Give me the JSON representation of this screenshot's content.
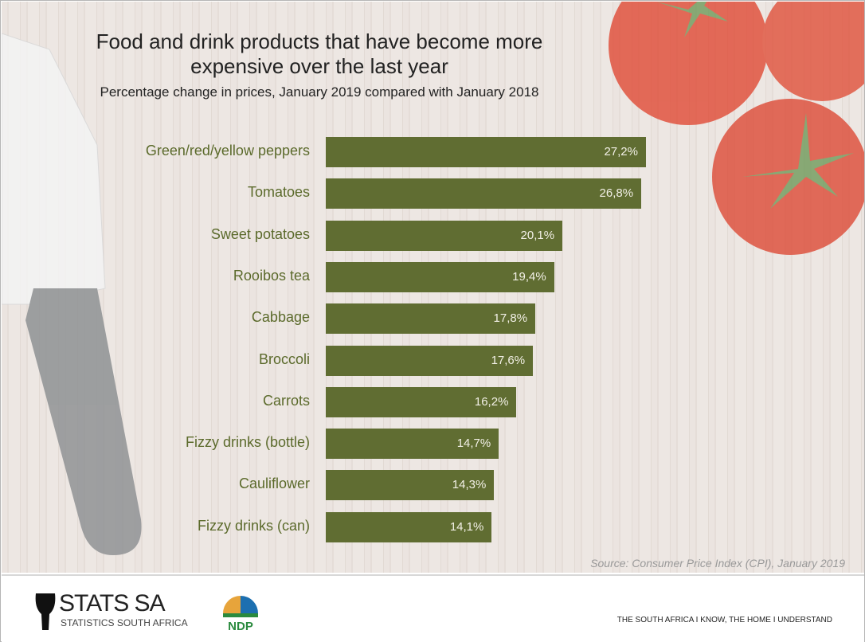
{
  "chart_data": {
    "type": "bar",
    "orientation": "horizontal",
    "title": "Food and drink products that have become more expensive over the last year",
    "title_lines": [
      "Food and drink products that have become more",
      "expensive over the last year"
    ],
    "subtitle": "Percentage change in prices, January 2019 compared with January 2018",
    "categories": [
      "Green/red/yellow peppers",
      "Tomatoes",
      "Sweet potatoes",
      "Rooibos tea",
      "Cabbage",
      "Broccoli",
      "Carrots",
      "Fizzy drinks (bottle)",
      "Cauliflower",
      "Fizzy drinks (can)"
    ],
    "values": [
      27.2,
      26.8,
      20.1,
      19.4,
      17.8,
      17.6,
      16.2,
      14.7,
      14.3,
      14.1
    ],
    "labels": [
      "27,2%",
      "26,8%",
      "20,1%",
      "19,4%",
      "17,8%",
      "17,6%",
      "16,2%",
      "14,7%",
      "14,3%",
      "14,1%"
    ],
    "xlim": [
      0,
      27.2
    ],
    "bar_color": "#606d32",
    "source": "Source: Consumer Price Index (CPI), January 2019"
  },
  "footer": {
    "logo_name": "STATS SA",
    "logo_sub": "STATISTICS SOUTH AFRICA",
    "ndp_logo": "NDP 2030",
    "tagline": "THE SOUTH AFRICA I KNOW, THE HOME I UNDERSTAND"
  }
}
